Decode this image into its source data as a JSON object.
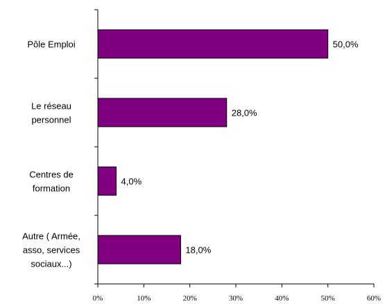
{
  "chart_data": {
    "type": "bar",
    "orientation": "horizontal",
    "categories": [
      [
        "Pôle Emploi"
      ],
      [
        "Le réseau",
        "personnel"
      ],
      [
        "Centres de",
        "formation"
      ],
      [
        "Autre ( Armée,",
        "asso, services",
        "sociaux...)"
      ]
    ],
    "values": [
      50,
      28,
      4,
      18
    ],
    "data_labels": [
      "50,0%",
      "28,0%",
      "4,0%",
      "18,0%"
    ],
    "xlim": [
      0,
      60
    ],
    "xticks": [
      0,
      10,
      20,
      30,
      40,
      50,
      60
    ],
    "xtick_labels": [
      "0%",
      "10%",
      "20%",
      "30%",
      "40%",
      "50%",
      "60%"
    ],
    "bar_color": "#800080",
    "grid": false,
    "legend": "none"
  }
}
